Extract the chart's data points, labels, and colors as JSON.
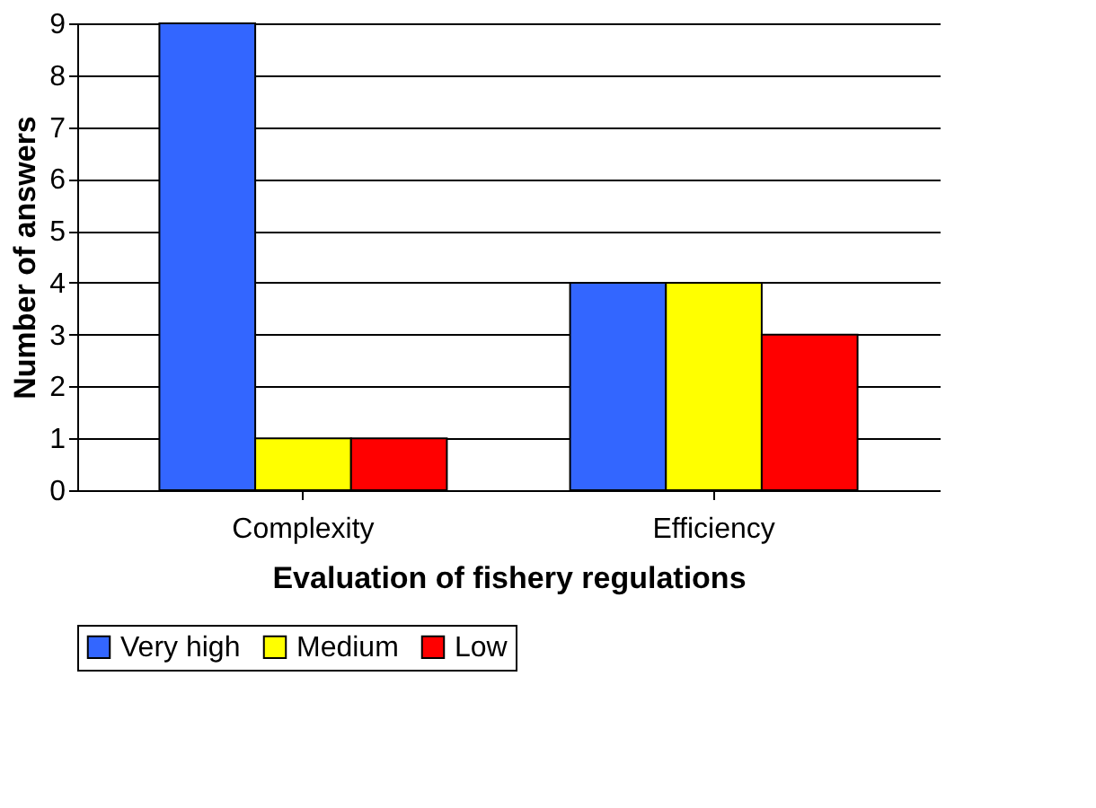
{
  "chart_data": {
    "type": "bar",
    "xlabel": "Evaluation of fishery regulations",
    "ylabel": "Number of answers",
    "categories": [
      "Complexity",
      "Efficiency"
    ],
    "series": [
      {
        "name": "Very high",
        "color": "#3366ff",
        "values": [
          9,
          4
        ]
      },
      {
        "name": "Medium",
        "color": "#ffff00",
        "values": [
          1,
          4
        ]
      },
      {
        "name": "Low",
        "color": "#ff0000",
        "values": [
          1,
          3
        ]
      }
    ],
    "ylim": [
      0,
      9
    ],
    "yticks": [
      0,
      1,
      2,
      3,
      4,
      5,
      6,
      7,
      8,
      9
    ],
    "grid": "y",
    "legend": "bottom"
  }
}
